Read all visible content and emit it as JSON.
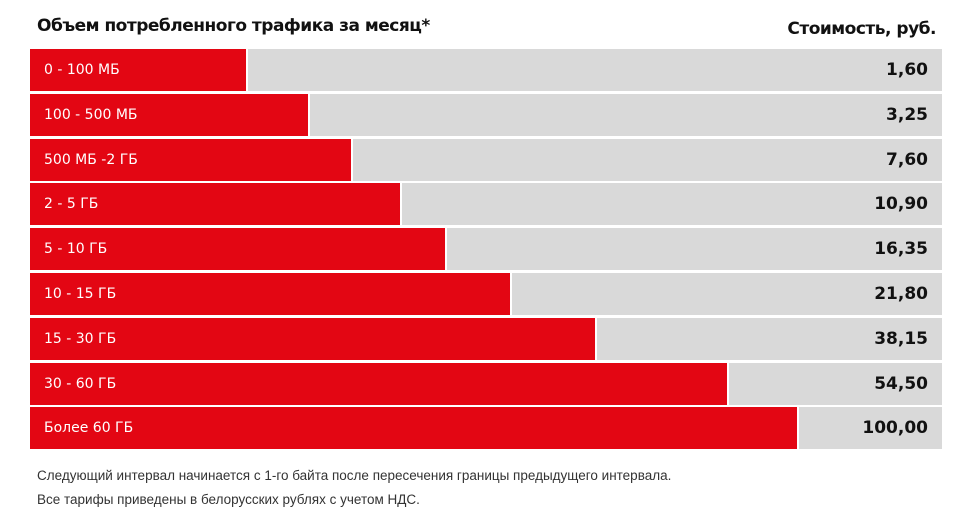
{
  "chart_data": {
    "type": "bar",
    "orientation": "horizontal",
    "title": "Объем потребленного трафика за месяц*",
    "value_header": "Стоимость, руб.",
    "categories": [
      "0 - 100 МБ",
      "100 - 500 МБ",
      "500 МБ -2 ГБ",
      "2 - 5 ГБ",
      "5 - 10 ГБ",
      "10 - 15 ГБ",
      "15 - 30 ГБ",
      "30 - 60 ГБ",
      "Более 60 ГБ"
    ],
    "values": [
      "1,60",
      "3,25",
      "7,60",
      "10,90",
      "16,35",
      "21,80",
      "38,15",
      "54,50",
      "100,00"
    ],
    "bar_fill": [
      0.237,
      0.305,
      0.352,
      0.406,
      0.455,
      0.526,
      0.62,
      0.764,
      0.841
    ],
    "colors": {
      "bar": "#e30613",
      "track": "#d9d9d9"
    }
  },
  "notes": [
    "Следующий интервал начинается с 1-го байта после пересечения границы предыдущего интервала.",
    "Все тарифы приведены в белорусских рублях с учетом НДС."
  ]
}
